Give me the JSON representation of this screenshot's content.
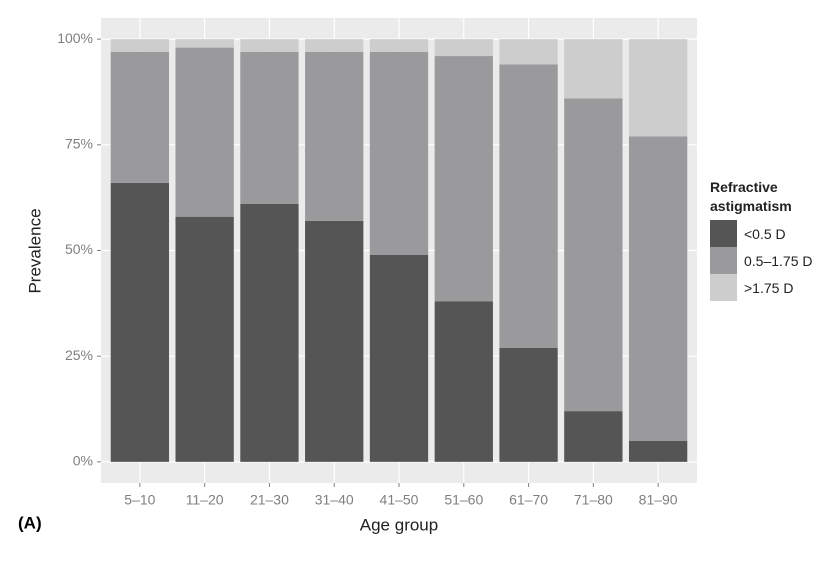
{
  "chart_data": {
    "type": "stacked_bar",
    "panel_label": "(A)",
    "x_label": "Age group",
    "y_label": "Prevalence",
    "categories": [
      "5–10",
      "11–20",
      "21–30",
      "31–40",
      "41–50",
      "51–60",
      "61–70",
      "71–80",
      "81–90"
    ],
    "series": [
      {
        "name": "<0.5 D",
        "color": "#555555",
        "values": [
          66,
          58,
          61,
          57,
          49,
          38,
          27,
          12,
          5
        ]
      },
      {
        "name": "0.5–1.75 D",
        "color": "#9a9a9c",
        "values": [
          31,
          40,
          36,
          40,
          48,
          58,
          67,
          74,
          72
        ]
      },
      {
        "name": ">1.75 D",
        "color": "#cdcdcd",
        "values": [
          3,
          2,
          3,
          3,
          3,
          4,
          6,
          14,
          23
        ]
      }
    ],
    "legend_title": "Refractive astigmatism",
    "ylim": [
      -5,
      105
    ],
    "yticks": [
      {
        "value": 0,
        "label": "0%"
      },
      {
        "value": 25,
        "label": "25%"
      },
      {
        "value": 50,
        "label": "50%"
      },
      {
        "value": 75,
        "label": "75%"
      },
      {
        "value": 100,
        "label": "100%"
      }
    ],
    "grid": true
  }
}
